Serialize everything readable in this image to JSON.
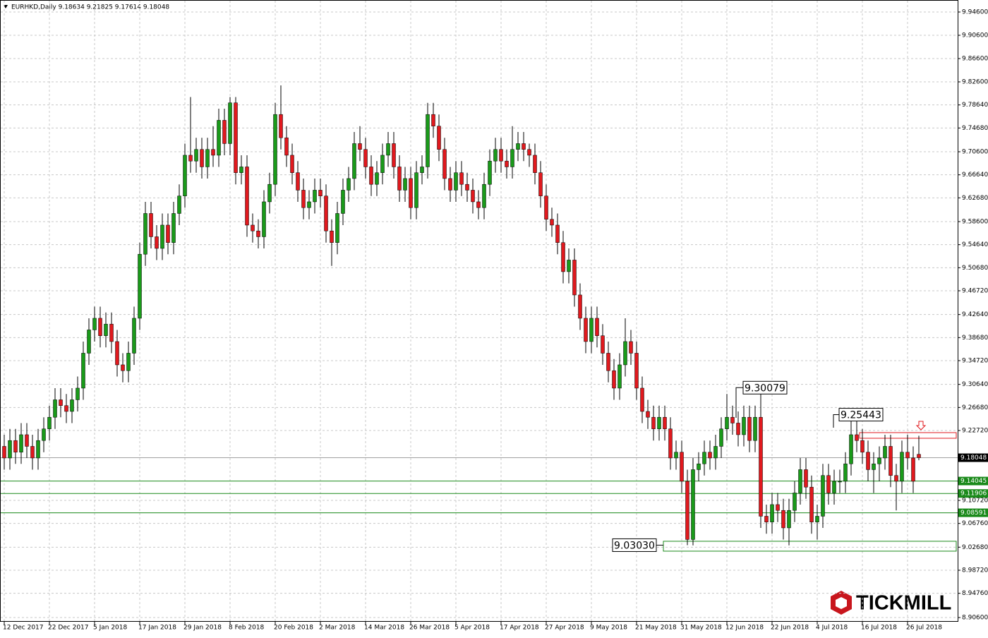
{
  "chart_data": {
    "type": "candlestick",
    "title": "EURHKD,Daily  9.18634 9.21825 9.17614 9.18048",
    "logo": "TICKMILL",
    "bull_color": "#1a9a1a",
    "bear_color": "#e0191e",
    "grid": true,
    "ylim": [
      8.906,
      9.946
    ],
    "yticks": [
      {
        "value": 9.946,
        "label": "9.94600"
      },
      {
        "value": 9.906,
        "label": "9.90600"
      },
      {
        "value": 9.866,
        "label": "9.86600"
      },
      {
        "value": 9.826,
        "label": "9.82600"
      },
      {
        "value": 9.7864,
        "label": "9.78640"
      },
      {
        "value": 9.7468,
        "label": "9.74680"
      },
      {
        "value": 9.706,
        "label": "9.70600"
      },
      {
        "value": 9.6664,
        "label": "9.66640"
      },
      {
        "value": 9.6268,
        "label": "9.62680"
      },
      {
        "value": 9.586,
        "label": "9.58600"
      },
      {
        "value": 9.5464,
        "label": "9.54640"
      },
      {
        "value": 9.5068,
        "label": "9.50680"
      },
      {
        "value": 9.4672,
        "label": "9.46720"
      },
      {
        "value": 9.4264,
        "label": "9.42640"
      },
      {
        "value": 9.3868,
        "label": "9.38680"
      },
      {
        "value": 9.3472,
        "label": "9.34720"
      },
      {
        "value": 9.3064,
        "label": "9.30640"
      },
      {
        "value": 9.2668,
        "label": "9.26680"
      },
      {
        "value": 9.2272,
        "label": "9.22720"
      },
      {
        "value": 9.1072,
        "label": "9.10720"
      },
      {
        "value": 9.0676,
        "label": "9.06760"
      },
      {
        "value": 9.0268,
        "label": "9.02680"
      },
      {
        "value": 8.9872,
        "label": "8.98720"
      },
      {
        "value": 8.9476,
        "label": "8.94760"
      },
      {
        "value": 8.906,
        "label": "8.90600"
      }
    ],
    "categories": [
      "12 Dec 2017",
      null,
      null,
      null,
      null,
      null,
      null,
      null,
      "22 Dec 2017",
      null,
      null,
      null,
      null,
      null,
      null,
      null,
      "5 Jan 2018",
      null,
      null,
      null,
      null,
      null,
      null,
      null,
      "17 Jan 2018",
      null,
      null,
      null,
      null,
      null,
      null,
      null,
      "29 Jan 2018",
      null,
      null,
      null,
      null,
      null,
      null,
      null,
      "8 Feb 2018",
      null,
      null,
      null,
      null,
      null,
      null,
      null,
      "20 Feb 2018",
      null,
      null,
      null,
      null,
      null,
      null,
      null,
      "2 Mar 2018",
      null,
      null,
      null,
      null,
      null,
      null,
      null,
      "14 Mar 2018",
      null,
      null,
      null,
      null,
      null,
      null,
      null,
      "26 Mar 2018",
      null,
      null,
      null,
      null,
      null,
      null,
      null,
      "5 Apr 2018",
      null,
      null,
      null,
      null,
      null,
      null,
      null,
      "17 Apr 2018",
      null,
      null,
      null,
      null,
      null,
      null,
      null,
      "27 Apr 2018",
      null,
      null,
      null,
      null,
      null,
      null,
      null,
      "9 May 2018",
      null,
      null,
      null,
      null,
      null,
      null,
      null,
      "21 May 2018",
      null,
      null,
      null,
      null,
      null,
      null,
      null,
      "31 May 2018",
      null,
      null,
      null,
      null,
      null,
      null,
      null,
      "12 Jun 2018",
      null,
      null,
      null,
      null,
      null,
      null,
      null,
      "22 Jun 2018",
      null,
      null,
      null,
      null,
      null,
      null,
      null,
      "4 Jul 2018",
      null,
      null,
      null,
      null,
      null,
      null,
      null,
      "16 Jul 2018",
      null,
      null,
      null,
      null,
      null,
      null,
      null,
      "26 Jul 2018",
      null,
      null
    ],
    "open": [
      9.2,
      9.18,
      9.21,
      9.19,
      9.22,
      9.2,
      9.18,
      9.21,
      9.23,
      9.25,
      9.28,
      9.27,
      9.26,
      9.28,
      9.3,
      9.36,
      9.4,
      9.42,
      9.39,
      9.41,
      9.38,
      9.34,
      9.33,
      9.36,
      9.42,
      9.53,
      9.6,
      9.56,
      9.54,
      9.58,
      9.55,
      9.6,
      9.63,
      9.7,
      9.69,
      9.71,
      9.68,
      9.71,
      9.7,
      9.76,
      9.72,
      9.79,
      9.67,
      9.68,
      9.58,
      9.57,
      9.56,
      9.62,
      9.65,
      9.77,
      9.73,
      9.7,
      9.67,
      9.64,
      9.61,
      9.62,
      9.64,
      9.63,
      9.57,
      9.55,
      9.6,
      9.64,
      9.66,
      9.72,
      9.71,
      9.68,
      9.65,
      9.67,
      9.7,
      9.72,
      9.68,
      9.64,
      9.66,
      9.61,
      9.67,
      9.68,
      9.77,
      9.75,
      9.71,
      9.66,
      9.64,
      9.67,
      9.65,
      9.64,
      9.62,
      9.61,
      9.65,
      9.69,
      9.71,
      9.69,
      9.68,
      9.71,
      9.72,
      9.71,
      9.7,
      9.67,
      9.63,
      9.59,
      9.58,
      9.55,
      9.5,
      9.52,
      9.46,
      9.42,
      9.38,
      9.42,
      9.39,
      9.36,
      9.33,
      9.3,
      9.34,
      9.38,
      9.36,
      9.3,
      9.26,
      9.25,
      9.23,
      9.25,
      9.23,
      9.18,
      9.19,
      9.14,
      9.04,
      9.16,
      9.17,
      9.19,
      9.18,
      9.2,
      9.23,
      9.25,
      9.24,
      9.22,
      9.25,
      9.21,
      9.25,
      9.08,
      9.07,
      9.1,
      9.09,
      9.06,
      9.09,
      9.12,
      9.16,
      9.13,
      9.07,
      9.08,
      9.15,
      9.12,
      9.14,
      9.14,
      9.17,
      9.22,
      9.21,
      9.19,
      9.16,
      9.17,
      9.18,
      9.2,
      9.15,
      9.14,
      9.19,
      9.18,
      9.18634
    ],
    "high": [
      9.22,
      9.23,
      9.23,
      9.24,
      9.24,
      9.22,
      9.23,
      9.25,
      9.27,
      9.3,
      9.3,
      9.29,
      9.3,
      9.32,
      9.38,
      9.42,
      9.44,
      9.44,
      9.43,
      9.43,
      9.4,
      9.36,
      9.38,
      9.44,
      9.55,
      9.62,
      9.62,
      9.58,
      9.6,
      9.6,
      9.62,
      9.65,
      9.72,
      9.8,
      9.73,
      9.73,
      9.73,
      9.75,
      9.78,
      9.78,
      9.8,
      9.8,
      9.7,
      9.7,
      9.6,
      9.59,
      9.64,
      9.67,
      9.79,
      9.82,
      9.75,
      9.72,
      9.69,
      9.66,
      9.64,
      9.66,
      9.66,
      9.65,
      9.59,
      9.62,
      9.66,
      9.68,
      9.74,
      9.75,
      9.73,
      9.7,
      9.69,
      9.72,
      9.74,
      9.74,
      9.7,
      9.68,
      9.68,
      9.69,
      9.7,
      9.79,
      9.79,
      9.77,
      9.73,
      9.68,
      9.69,
      9.69,
      9.67,
      9.66,
      9.64,
      9.67,
      9.71,
      9.73,
      9.73,
      9.71,
      9.75,
      9.74,
      9.74,
      9.72,
      9.72,
      9.69,
      9.65,
      9.61,
      9.6,
      9.57,
      9.54,
      9.54,
      9.48,
      9.44,
      9.44,
      9.44,
      9.41,
      9.38,
      9.35,
      9.36,
      9.42,
      9.4,
      9.38,
      9.32,
      9.28,
      9.27,
      9.27,
      9.27,
      9.25,
      9.21,
      9.21,
      9.16,
      9.18,
      9.19,
      9.21,
      9.21,
      9.22,
      9.25,
      9.29,
      9.27,
      9.26,
      9.27,
      9.27,
      9.27,
      9.30079,
      9.1,
      9.12,
      9.12,
      9.11,
      9.11,
      9.14,
      9.18,
      9.18,
      9.15,
      9.1,
      9.17,
      9.17,
      9.16,
      9.16,
      9.19,
      9.25443,
      9.25,
      9.23,
      9.21,
      9.19,
      9.2,
      9.22,
      9.22,
      9.17,
      9.21,
      9.22,
      9.2,
      9.21825
    ],
    "low": [
      9.16,
      9.16,
      9.17,
      9.17,
      9.18,
      9.16,
      9.16,
      9.19,
      9.21,
      9.23,
      9.25,
      9.24,
      9.24,
      9.26,
      9.28,
      9.34,
      9.38,
      9.37,
      9.37,
      9.36,
      9.32,
      9.31,
      9.31,
      9.34,
      9.4,
      9.51,
      9.54,
      9.52,
      9.52,
      9.53,
      9.53,
      9.58,
      9.61,
      9.67,
      9.67,
      9.66,
      9.66,
      9.68,
      9.68,
      9.7,
      9.7,
      9.65,
      9.65,
      9.56,
      9.55,
      9.54,
      9.54,
      9.6,
      9.63,
      9.71,
      9.68,
      9.65,
      9.62,
      9.59,
      9.59,
      9.6,
      9.61,
      9.55,
      9.51,
      9.53,
      9.58,
      9.62,
      9.64,
      9.69,
      9.66,
      9.63,
      9.63,
      9.65,
      9.68,
      9.66,
      9.62,
      9.62,
      9.59,
      9.59,
      9.65,
      9.66,
      9.73,
      9.69,
      9.64,
      9.62,
      9.62,
      9.63,
      9.62,
      9.6,
      9.59,
      9.59,
      9.63,
      9.67,
      9.67,
      9.66,
      9.66,
      9.69,
      9.69,
      9.68,
      9.65,
      9.61,
      9.57,
      9.56,
      9.53,
      9.48,
      9.48,
      9.44,
      9.4,
      9.36,
      9.36,
      9.37,
      9.34,
      9.31,
      9.28,
      9.28,
      9.32,
      9.34,
      9.28,
      9.24,
      9.23,
      9.21,
      9.21,
      9.21,
      9.16,
      9.16,
      9.12,
      9.0303,
      9.03,
      9.14,
      9.15,
      9.16,
      9.16,
      9.18,
      9.21,
      9.22,
      9.2,
      9.2,
      9.19,
      9.19,
      9.06,
      9.05,
      9.05,
      9.07,
      9.04,
      9.03,
      9.07,
      9.1,
      9.11,
      9.05,
      9.04,
      9.06,
      9.1,
      9.1,
      9.12,
      9.12,
      9.15,
      9.19,
      9.17,
      9.14,
      9.12,
      9.14,
      9.16,
      9.13,
      9.09,
      9.12,
      9.16,
      9.12,
      9.17614
    ],
    "close": [
      9.18,
      9.21,
      9.19,
      9.22,
      9.2,
      9.18,
      9.21,
      9.23,
      9.25,
      9.28,
      9.27,
      9.26,
      9.28,
      9.3,
      9.36,
      9.4,
      9.42,
      9.39,
      9.41,
      9.38,
      9.34,
      9.33,
      9.36,
      9.42,
      9.53,
      9.6,
      9.56,
      9.54,
      9.58,
      9.55,
      9.6,
      9.63,
      9.7,
      9.69,
      9.71,
      9.68,
      9.71,
      9.7,
      9.76,
      9.72,
      9.79,
      9.67,
      9.68,
      9.58,
      9.57,
      9.56,
      9.62,
      9.65,
      9.77,
      9.73,
      9.7,
      9.67,
      9.64,
      9.61,
      9.62,
      9.64,
      9.63,
      9.57,
      9.55,
      9.6,
      9.64,
      9.66,
      9.72,
      9.71,
      9.68,
      9.65,
      9.67,
      9.7,
      9.72,
      9.68,
      9.64,
      9.66,
      9.61,
      9.67,
      9.68,
      9.77,
      9.75,
      9.71,
      9.66,
      9.64,
      9.67,
      9.65,
      9.64,
      9.62,
      9.61,
      9.65,
      9.69,
      9.71,
      9.69,
      9.68,
      9.71,
      9.72,
      9.71,
      9.7,
      9.67,
      9.63,
      9.59,
      9.58,
      9.55,
      9.5,
      9.52,
      9.46,
      9.42,
      9.38,
      9.42,
      9.39,
      9.36,
      9.33,
      9.3,
      9.34,
      9.38,
      9.36,
      9.3,
      9.26,
      9.25,
      9.23,
      9.25,
      9.23,
      9.18,
      9.19,
      9.14,
      9.04,
      9.16,
      9.17,
      9.19,
      9.18,
      9.2,
      9.23,
      9.25,
      9.24,
      9.22,
      9.25,
      9.21,
      9.25,
      9.08,
      9.07,
      9.1,
      9.09,
      9.06,
      9.09,
      9.12,
      9.16,
      9.13,
      9.07,
      9.08,
      9.15,
      9.12,
      9.14,
      9.14,
      9.17,
      9.22,
      9.21,
      9.19,
      9.16,
      9.17,
      9.18,
      9.2,
      9.15,
      9.14,
      9.19,
      9.18,
      9.14,
      9.18048
    ],
    "current_price": 9.18048,
    "support_levels": [
      9.14045,
      9.11906,
      9.08591
    ],
    "level_color": "#1a8a1a",
    "zones": [
      {
        "low": 9.02,
        "high": 9.037,
        "color": "#1a8a1a"
      },
      {
        "low": 9.2139,
        "high": 9.2236,
        "color": "#e0191e"
      }
    ],
    "annotations": [
      9.30079,
      9.25443,
      {
        "value": 9.0303,
        "label": "9.03030"
      }
    ]
  }
}
